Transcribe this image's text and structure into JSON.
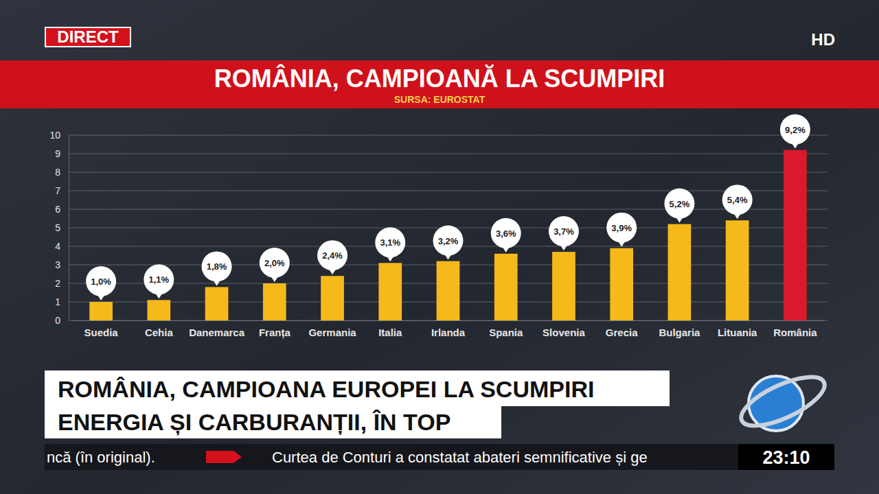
{
  "broadcast": {
    "live": "DIRECT",
    "quality": "HD",
    "headline": [
      "ROMÂNIA, CAMPIOANA EUROPEI LA SCUMPIRI",
      "ENERGIA ȘI CARBURANȚII, ÎN TOP"
    ],
    "ticker": [
      "ncă (în original).",
      "Curtea de Conturi a constatat abateri semnificative și ge"
    ],
    "clock": "23:10"
  },
  "chart_data": {
    "type": "bar",
    "title": "ROMÂNIA, CAMPIOANĂ LA SCUMPIRI",
    "subtitle": "SURSA: EUROSTAT",
    "categories": [
      "Suedia",
      "Cehia",
      "Danemarca",
      "Franța",
      "Germania",
      "Italia",
      "Irlanda",
      "Spania",
      "Slovenia",
      "Grecia",
      "Bulgaria",
      "Lituania",
      "România"
    ],
    "values": [
      1.0,
      1.1,
      1.8,
      2.0,
      2.4,
      3.1,
      3.2,
      3.6,
      3.7,
      3.9,
      5.2,
      5.4,
      9.2
    ],
    "value_labels": [
      "1,0%",
      "1,1%",
      "1,8%",
      "2,0%",
      "2,4%",
      "3,1%",
      "3,2%",
      "3,6%",
      "3,7%",
      "3,9%",
      "5,2%",
      "5,4%",
      "9,2%"
    ],
    "colors": [
      "#f6b91c",
      "#f6b91c",
      "#f6b91c",
      "#f6b91c",
      "#f6b91c",
      "#f6b91c",
      "#f6b91c",
      "#f6b91c",
      "#f6b91c",
      "#f6b91c",
      "#f6b91c",
      "#f6b91c",
      "#d81a2c"
    ],
    "ylim": [
      0,
      10
    ],
    "yticks": [
      0,
      1,
      2,
      3,
      4,
      5,
      6,
      7,
      8,
      9,
      10
    ],
    "grid": true,
    "data_labels": true
  }
}
